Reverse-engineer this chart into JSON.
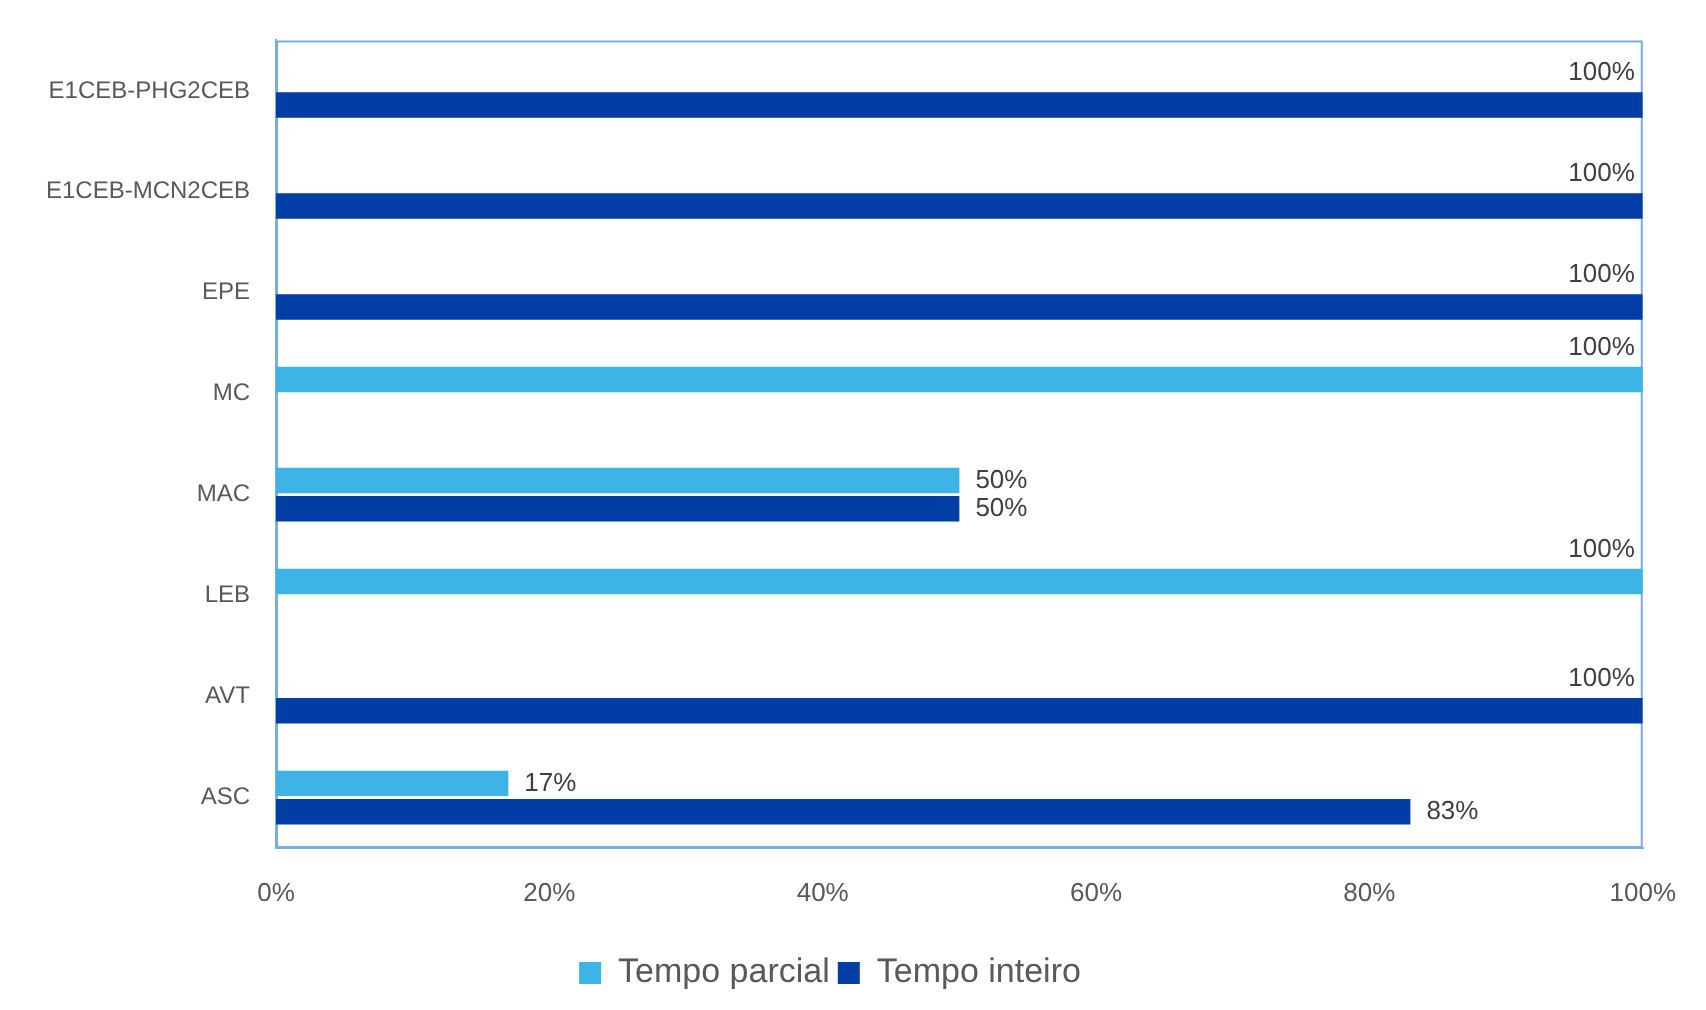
{
  "chart_data": {
    "type": "bar",
    "orientation": "horizontal",
    "legend": "bottom",
    "categories": [
      "E1CEB-PHG2CEB",
      "E1CEB-MCN2CEB",
      "EPE",
      "MC",
      "MAC",
      "LEB",
      "AVT",
      "ASC"
    ],
    "series": [
      {
        "name": "Tempo parcial",
        "color": "#3cb4e5",
        "values": [
          null,
          null,
          null,
          100,
          50,
          100,
          null,
          17
        ],
        "value_labels": [
          null,
          null,
          null,
          "100%",
          "50%",
          "100%",
          null,
          "17%"
        ]
      },
      {
        "name": "Tempo inteiro",
        "color": "#003da5",
        "values": [
          100,
          100,
          100,
          null,
          50,
          null,
          100,
          83
        ],
        "value_labels": [
          "100%",
          "100%",
          "100%",
          null,
          "50%",
          null,
          "100%",
          "83%"
        ]
      }
    ],
    "xlim": [
      0,
      100
    ],
    "xticks": [
      {
        "value": 0,
        "label": "0%"
      },
      {
        "value": 20,
        "label": "20%"
      },
      {
        "value": 40,
        "label": "40%"
      },
      {
        "value": 60,
        "label": "60%"
      },
      {
        "value": 80,
        "label": "80%"
      },
      {
        "value": 100,
        "label": "100%"
      }
    ]
  }
}
